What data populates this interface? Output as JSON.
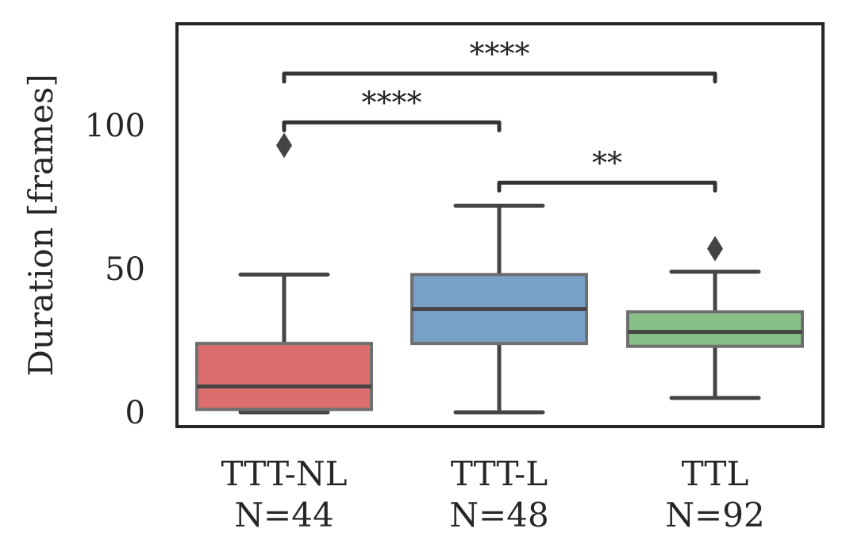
{
  "chart_data": {
    "type": "box",
    "ylabel": "Duration [frames]",
    "ylim": [
      -5,
      135
    ],
    "yticks": [
      0,
      50,
      100
    ],
    "grid": false,
    "categories": [
      {
        "name": "TTT-NL",
        "n_label": "N=44",
        "color": "#dc6e6e"
      },
      {
        "name": "TTT-L",
        "n_label": "N=48",
        "color": "#7aa2c8"
      },
      {
        "name": "TTL",
        "n_label": "N=92",
        "color": "#88c088"
      }
    ],
    "boxes": [
      {
        "min": 0,
        "q1": 1,
        "median": 9,
        "q3": 24,
        "max": 48,
        "outliers": [
          93
        ]
      },
      {
        "min": 0,
        "q1": 24,
        "median": 36,
        "q3": 48,
        "max": 72,
        "outliers": []
      },
      {
        "min": 5,
        "q1": 23,
        "median": 28,
        "q3": 35,
        "max": 49,
        "outliers": [
          57
        ]
      }
    ],
    "significance": [
      {
        "from": 0,
        "to": 2,
        "y": 118,
        "label": "****"
      },
      {
        "from": 0,
        "to": 1,
        "y": 101,
        "label": "****"
      },
      {
        "from": 1,
        "to": 2,
        "y": 80,
        "label": "**"
      }
    ]
  }
}
